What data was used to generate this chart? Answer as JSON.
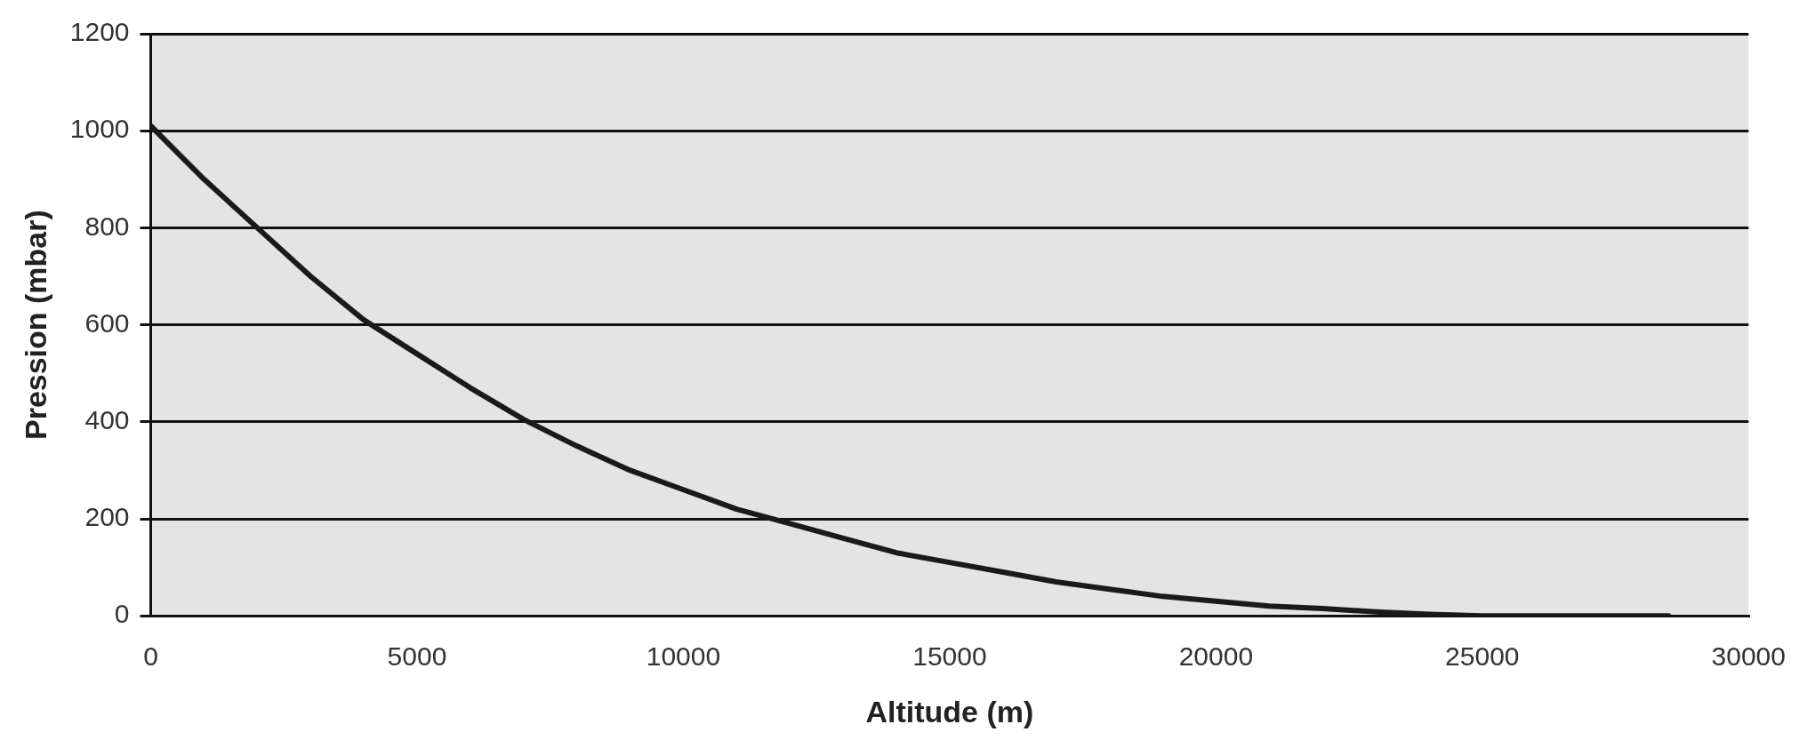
{
  "chart_data": {
    "type": "line",
    "xlabel": "Altitude (m)",
    "ylabel": "Pression (mbar)",
    "x": [
      0,
      1000,
      2000,
      3000,
      4000,
      5000,
      6000,
      7000,
      8000,
      9000,
      10000,
      11000,
      12000,
      13000,
      14000,
      15000,
      16000,
      17000,
      18000,
      19000,
      20000,
      21000,
      22000,
      23000,
      24000,
      25000,
      26000,
      27000,
      28500
    ],
    "series": [
      {
        "color": "#1a1a1a",
        "values": [
          1010,
          900,
          800,
          700,
          610,
          540,
          470,
          405,
          350,
          300,
          260,
          220,
          190,
          160,
          130,
          110,
          90,
          70,
          55,
          40,
          30,
          20,
          15,
          8,
          3,
          0,
          0,
          0,
          0
        ]
      }
    ],
    "xlim": [
      0,
      30000
    ],
    "xticks": [
      0,
      5000,
      10000,
      15000,
      20000,
      25000,
      30000
    ],
    "ylim": [
      0,
      1200
    ],
    "yticks": [
      0,
      200,
      400,
      600,
      800,
      1000,
      1200
    ],
    "grid": "y",
    "marker": "none",
    "line_style": "solid",
    "legend": false
  }
}
